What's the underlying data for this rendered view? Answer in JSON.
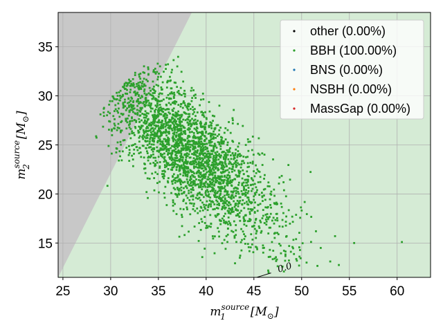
{
  "chart_data": {
    "type": "scatter",
    "title": "",
    "xlabel": {
      "base": "m",
      "sub": "1",
      "sup": "source",
      "unit": "[M",
      "unit_sub": "⊙",
      "unit_close": "]"
    },
    "ylabel": {
      "base": "m",
      "sub": "2",
      "sup": "source",
      "unit": "[M",
      "unit_sub": "⊙",
      "unit_close": "]"
    },
    "xlim": [
      24.5,
      63.5
    ],
    "ylim": [
      11.5,
      38.5
    ],
    "xticks": [
      25,
      30,
      35,
      40,
      45,
      50,
      55,
      60
    ],
    "yticks": [
      15,
      20,
      25,
      30,
      35
    ],
    "grid": true,
    "legend_position": "top-right",
    "background_region": {
      "name": "BBH region",
      "color": "#d5ebd5"
    },
    "excluded_region": {
      "name": "m2 > m1 region",
      "color": "#c8c8c8",
      "boundary": "m2 = m1"
    },
    "contour_label": {
      "text": "0.0",
      "x": 47.6,
      "y": 12.0
    },
    "sample_distribution": {
      "description_free": true,
      "center": [
        38.0,
        24.5
      ],
      "spread_along_anti_diagonal": 6.5,
      "spread_perpendicular": 2.2,
      "count": 2600,
      "color": "#2ca02c",
      "outliers": [
        [
          55.5,
          15.0
        ],
        [
          60.5,
          15.1
        ],
        [
          53.5,
          15.7
        ],
        [
          52.0,
          14.5
        ],
        [
          51.5,
          16.2
        ],
        [
          49.5,
          13.2
        ],
        [
          48.0,
          12.6
        ],
        [
          46.5,
          12.2
        ]
      ]
    },
    "series": [
      {
        "name": "other (0.00%)",
        "color": "#000000"
      },
      {
        "name": "BBH (100.00%)",
        "color": "#2ca02c"
      },
      {
        "name": "BNS (0.00%)",
        "color": "#1f77b4"
      },
      {
        "name": "NSBH (0.00%)",
        "color": "#ff7f0e"
      },
      {
        "name": "MassGap (0.00%)",
        "color": "#d62728"
      }
    ]
  }
}
